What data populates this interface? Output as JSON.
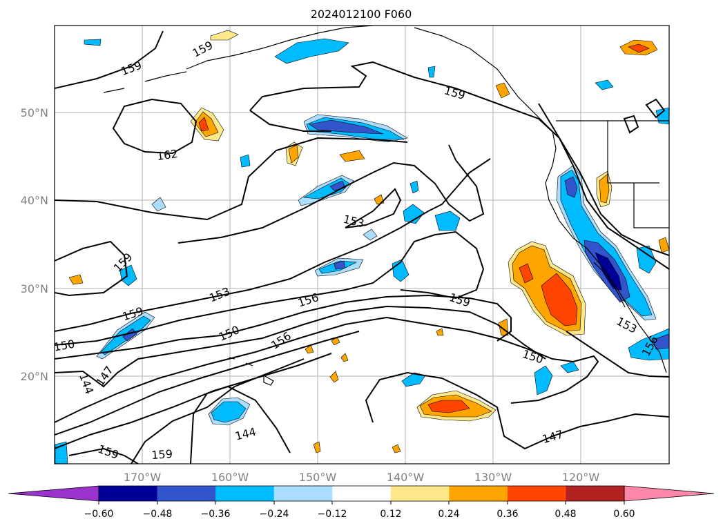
{
  "title": "2024012100 F060",
  "map": {
    "lat_labels": [
      "50°N",
      "40°N",
      "30°N",
      "20°N"
    ],
    "lon_labels": [
      "170°W",
      "160°W",
      "150°W",
      "140°W",
      "130°W",
      "120°W"
    ],
    "contour_labels": [
      "159",
      "159",
      "162",
      "159",
      "153",
      "159",
      "153",
      "156",
      "159",
      "150",
      "153",
      "156",
      "159",
      "156",
      "150",
      "147",
      "144",
      "150",
      "147",
      "144",
      "159",
      "159"
    ],
    "colors": {
      "frame": "#000000",
      "grid": "#b0b0b0",
      "contour": "#000000"
    }
  },
  "colorbar": {
    "tick_labels": [
      "−0.60",
      "−0.48",
      "−0.36",
      "−0.24",
      "−0.12",
      "0.12",
      "0.24",
      "0.36",
      "0.48",
      "0.60"
    ],
    "colors": [
      "#9933cc",
      "#000099",
      "#3355cc",
      "#00bbff",
      "#aaddff",
      "#ffffff",
      "#ffe88a",
      "#ffa500",
      "#ff4500",
      "#b22222",
      "#ff88aa"
    ]
  }
}
